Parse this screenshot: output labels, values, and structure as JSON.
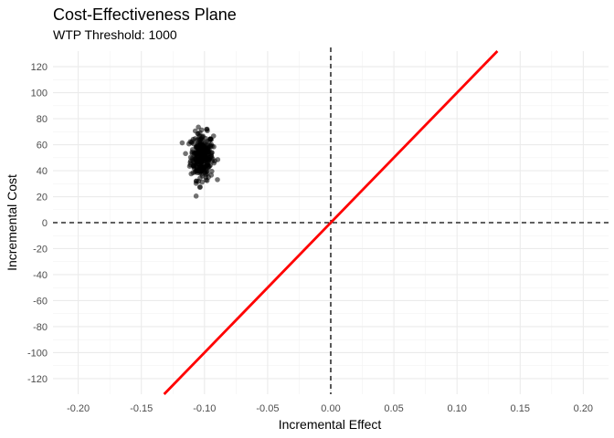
{
  "chart_data": {
    "type": "scatter",
    "title": "Cost-Effectiveness Plane",
    "subtitle": "WTP Threshold: 1000",
    "xlabel": "Incremental Effect",
    "ylabel": "Incremental Cost",
    "xlim": [
      -0.22,
      0.22
    ],
    "ylim": [
      -132,
      132
    ],
    "x_ticks": [
      -0.2,
      -0.15,
      -0.1,
      -0.05,
      0.0,
      0.05,
      0.1,
      0.15,
      0.2
    ],
    "x_tick_labels": [
      "-0.20",
      "-0.15",
      "-0.10",
      "-0.05",
      "0.00",
      "0.05",
      "0.10",
      "0.15",
      "0.20"
    ],
    "y_ticks": [
      120,
      100,
      80,
      60,
      40,
      20,
      0,
      -20,
      -40,
      -60,
      -80,
      -100,
      -120
    ],
    "y_tick_labels": [
      "120",
      "100",
      "80",
      "60",
      "40",
      "20",
      "0",
      "-20",
      "-40",
      "-60",
      "-80",
      "-100",
      "-120"
    ],
    "grid": true,
    "point_cloud": {
      "center_x": -0.102,
      "center_y": 51,
      "sd_x": 0.0045,
      "sd_y": 9,
      "n": 300,
      "color": "#000000",
      "opacity": 0.55
    },
    "reference_lines": [
      {
        "type": "vertical",
        "x": 0,
        "style": "dashed",
        "color": "#000000"
      },
      {
        "type": "horizontal",
        "y": 0,
        "style": "dashed",
        "color": "#000000"
      }
    ],
    "wtp_line": {
      "slope": 1000,
      "intercept": 0,
      "color": "#ff0000"
    }
  }
}
